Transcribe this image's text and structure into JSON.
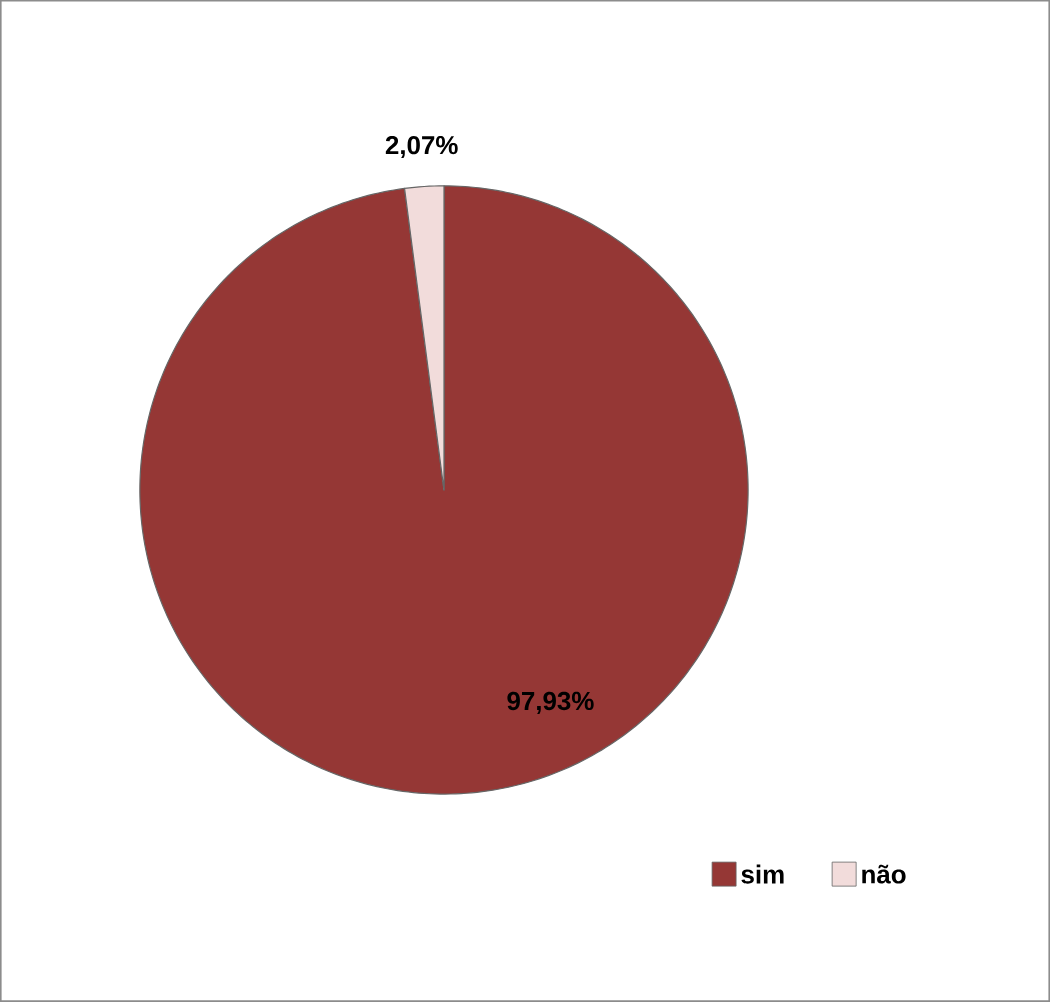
{
  "chart_data": {
    "type": "pie",
    "categories": [
      "sim",
      "não"
    ],
    "values": [
      97.93,
      2.07
    ],
    "colors": [
      "#953735",
      "#f2dcdb"
    ],
    "value_labels": [
      "97,93%",
      "2,07%"
    ],
    "legend": "bottom right"
  }
}
